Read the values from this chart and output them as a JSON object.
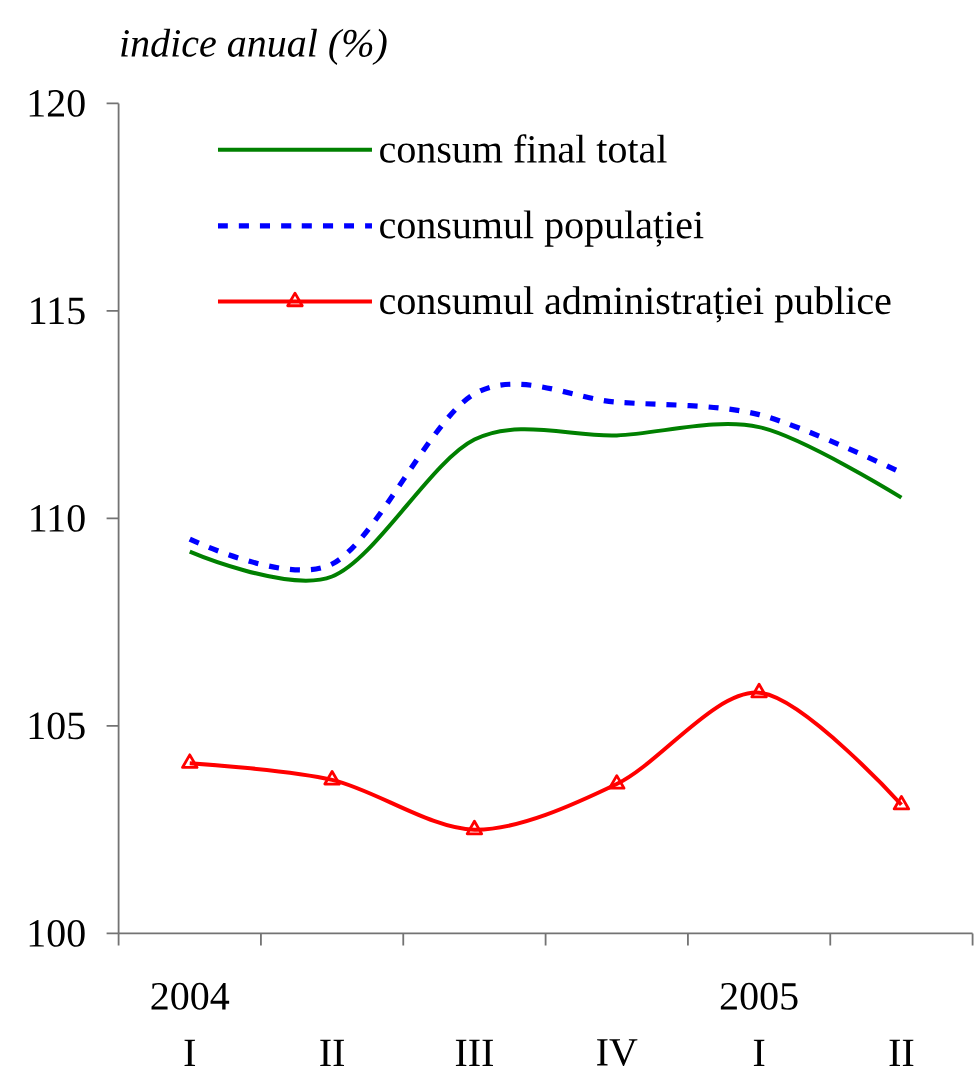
{
  "chart_data": {
    "type": "line",
    "ylabel": "indice anual (%)",
    "categories": [
      "2004 I",
      "II",
      "III",
      "IV",
      "2005 I",
      "II"
    ],
    "series": [
      {
        "name": "consum final total",
        "color": "#008000",
        "line_style": "solid",
        "marker": "none",
        "values": [
          109.2,
          108.6,
          111.9,
          112.0,
          112.2,
          110.5
        ]
      },
      {
        "name": "consumul populației",
        "color": "#0000ff",
        "line_style": "dashed",
        "marker": "none",
        "values": [
          109.5,
          108.9,
          113.0,
          112.8,
          112.5,
          111.1
        ]
      },
      {
        "name": "consumul administrației publice",
        "color": "#ff0000",
        "line_style": "solid",
        "marker": "triangle",
        "values": [
          104.1,
          103.7,
          102.5,
          103.6,
          105.8,
          103.1
        ]
      }
    ],
    "ylim": [
      100,
      120
    ],
    "yticks": [
      100,
      105,
      110,
      115,
      120
    ],
    "legend": "top"
  }
}
